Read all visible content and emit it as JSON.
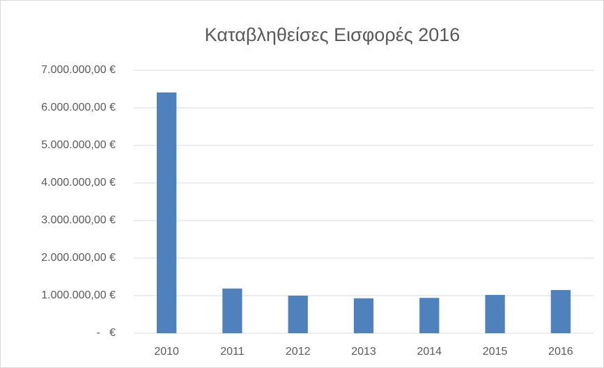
{
  "chart_data": {
    "type": "bar",
    "title": "Καταβληθείσες Εισφορές 2016",
    "categories": [
      "2010",
      "2011",
      "2012",
      "2013",
      "2014",
      "2015",
      "2016"
    ],
    "values": [
      6410000,
      1190000,
      1000000,
      930000,
      940000,
      1020000,
      1150000
    ],
    "color": "#4f81bd",
    "ylim": [
      0,
      7000000
    ],
    "yticks": [
      {
        "value": 0,
        "label": "-   €"
      },
      {
        "value": 1000000,
        "label": "1.000.000,00 €"
      },
      {
        "value": 2000000,
        "label": "2.000.000,00 €"
      },
      {
        "value": 3000000,
        "label": "3.000.000,00 €"
      },
      {
        "value": 4000000,
        "label": "4.000.000,00 €"
      },
      {
        "value": 5000000,
        "label": "5.000.000,00 €"
      },
      {
        "value": 6000000,
        "label": "6.000.000,00 €"
      },
      {
        "value": 7000000,
        "label": "7.000.000,00 €"
      }
    ],
    "grid": true
  }
}
